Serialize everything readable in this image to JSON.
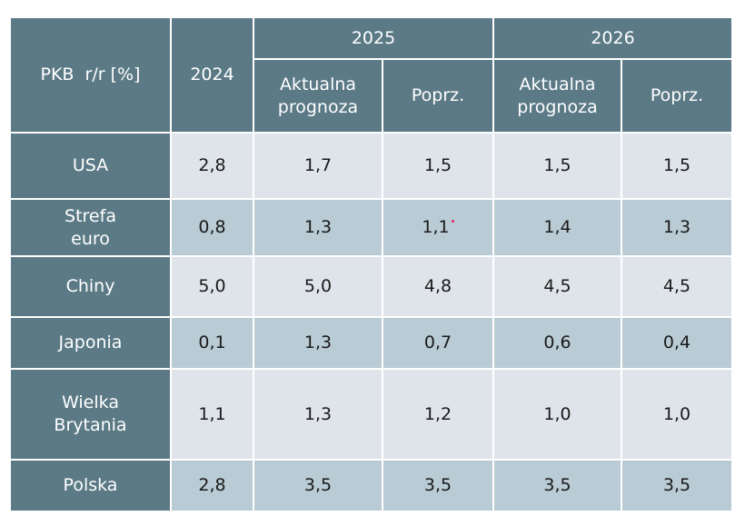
{
  "header": {
    "label": "PKB  r/r [%]",
    "col_2024": "2024",
    "year_2025": "2025",
    "year_2026": "2026",
    "current": "Aktualna prognoza",
    "previous": "Poprz."
  },
  "rows": [
    {
      "country": "USA",
      "v2024": "2,8",
      "a2025": "1,7",
      "p2025": "1,5",
      "a2026": "1,5",
      "p2026": "1,5"
    },
    {
      "country": "Strefa euro",
      "v2024": "0,8",
      "a2025": "1,3",
      "p2025": "1,1",
      "a2026": "1,4",
      "p2026": "1,3"
    },
    {
      "country": "Chiny",
      "v2024": "5,0",
      "a2025": "5,0",
      "p2025": "4,8",
      "a2026": "4,5",
      "p2026": "4,5"
    },
    {
      "country": "Japonia",
      "v2024": "0,1",
      "a2025": "1,3",
      "p2025": "0,7",
      "a2026": "0,6",
      "p2026": "0,4"
    },
    {
      "country": "Wielka Brytania",
      "v2024": "1,1",
      "a2025": "1,3",
      "p2025": "1,2",
      "a2026": "1,0",
      "p2026": "1,0"
    },
    {
      "country": "Polska",
      "v2024": "2,8",
      "a2025": "3,5",
      "p2025": "3,5",
      "a2026": "3,5",
      "p2026": "3,5"
    }
  ],
  "colors": {
    "header": "#5b7a86",
    "row_light": "#dfe4ea",
    "row_dark": "#b9cbd4",
    "marker": "#e0245e"
  }
}
